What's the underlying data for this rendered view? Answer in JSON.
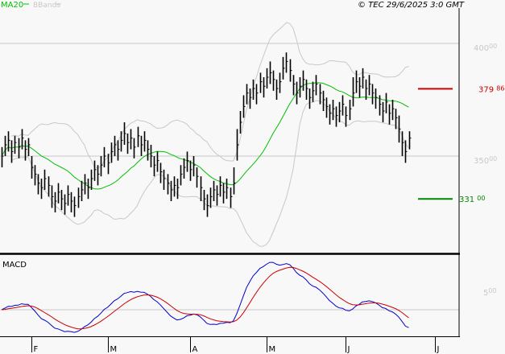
{
  "legend": {
    "ma20_label": "MA20",
    "bbands_label": "BBands",
    "copyright": "© TEC 29/6/2025 3:0 GMT"
  },
  "colors": {
    "background": "#f8f8f8",
    "bars": "#000000",
    "ma20": "#00c000",
    "bbands": "#c8c8c8",
    "resistance": "#cc0000",
    "support": "#008800",
    "macd": "#0000cc",
    "signal": "#cc0000",
    "grid": "#c8c8c8"
  },
  "chart_data": [
    {
      "type": "ohlc",
      "title": "",
      "ylim": [
        310,
        410
      ],
      "y_ticks": [
        {
          "value": 400,
          "major": "400",
          "minor": "00"
        },
        {
          "value": 350,
          "major": "350",
          "minor": "00"
        }
      ],
      "x_ticks": [
        "F",
        "M",
        "A",
        "M",
        "J",
        "J"
      ],
      "x_tick_bar_index": [
        9,
        32,
        57,
        80,
        104,
        131
      ],
      "grid": true,
      "levels": [
        {
          "name": "resistance",
          "value": 379.86,
          "major": "379",
          "minor": "86"
        },
        {
          "name": "support",
          "value": 331.0,
          "major": "331",
          "minor": "00"
        }
      ],
      "indicators": [
        "MA20",
        "BBands"
      ],
      "close": [
        350,
        355,
        357,
        352,
        356,
        354,
        358,
        353,
        355,
        345,
        342,
        338,
        336,
        340,
        337,
        332,
        330,
        334,
        331,
        329,
        333,
        330,
        328,
        332,
        335,
        338,
        336,
        340,
        344,
        342,
        346,
        350,
        347,
        352,
        355,
        353,
        357,
        360,
        356,
        358,
        354,
        359,
        355,
        357,
        353,
        350,
        346,
        348,
        343,
        340,
        338,
        335,
        337,
        336,
        342,
        345,
        348,
        344,
        346,
        341,
        336,
        331,
        328,
        332,
        335,
        333,
        337,
        334,
        336,
        332,
        338,
        355,
        365,
        372,
        378,
        376,
        380,
        378,
        383,
        381,
        385,
        387,
        384,
        380,
        383,
        389,
        392,
        388,
        382,
        378,
        381,
        384,
        380,
        376,
        379,
        382,
        378,
        375,
        372,
        369,
        371,
        368,
        370,
        373,
        368,
        371,
        378,
        383,
        381,
        385,
        380,
        382,
        378,
        376,
        373,
        370,
        374,
        369,
        371,
        367,
        362,
        356,
        352,
        358
      ],
      "high": [
        354,
        359,
        361,
        357,
        359,
        358,
        362,
        357,
        358,
        350,
        346,
        342,
        340,
        344,
        341,
        337,
        334,
        338,
        335,
        333,
        337,
        334,
        332,
        336,
        339,
        342,
        340,
        344,
        348,
        346,
        350,
        354,
        351,
        356,
        359,
        357,
        361,
        365,
        360,
        362,
        358,
        363,
        359,
        361,
        357,
        355,
        350,
        352,
        347,
        344,
        342,
        339,
        341,
        340,
        346,
        349,
        352,
        348,
        350,
        345,
        341,
        335,
        333,
        336,
        339,
        337,
        341,
        338,
        340,
        336,
        345,
        362,
        370,
        377,
        382,
        380,
        384,
        382,
        387,
        385,
        389,
        392,
        388,
        384,
        387,
        394,
        396,
        393,
        386,
        383,
        385,
        388,
        384,
        380,
        383,
        386,
        382,
        379,
        376,
        373,
        375,
        372,
        374,
        377,
        372,
        375,
        385,
        388,
        385,
        389,
        384,
        386,
        382,
        380,
        377,
        374,
        378,
        373,
        375,
        371,
        368,
        361,
        357,
        361
      ],
      "low": [
        345,
        350,
        352,
        347,
        351,
        349,
        353,
        348,
        350,
        340,
        337,
        333,
        331,
        335,
        332,
        327,
        325,
        329,
        326,
        324,
        328,
        325,
        323,
        327,
        330,
        333,
        331,
        335,
        339,
        337,
        341,
        345,
        342,
        347,
        350,
        348,
        352,
        355,
        351,
        353,
        349,
        354,
        350,
        352,
        348,
        345,
        341,
        343,
        338,
        335,
        333,
        330,
        332,
        331,
        337,
        340,
        343,
        339,
        341,
        336,
        330,
        326,
        323,
        327,
        330,
        328,
        332,
        329,
        331,
        327,
        333,
        348,
        360,
        367,
        373,
        371,
        375,
        373,
        378,
        376,
        380,
        382,
        379,
        375,
        378,
        384,
        387,
        383,
        377,
        373,
        376,
        379,
        375,
        371,
        374,
        377,
        373,
        370,
        367,
        364,
        366,
        363,
        365,
        368,
        363,
        366,
        372,
        378,
        376,
        380,
        375,
        377,
        373,
        371,
        368,
        365,
        369,
        364,
        366,
        362,
        356,
        350,
        347,
        353
      ]
    },
    {
      "type": "line",
      "title": "MACD",
      "y_ticks": [
        {
          "value": 5,
          "major": "5",
          "minor": "00"
        }
      ],
      "series": [
        {
          "name": "MACD",
          "color": "#0000cc"
        },
        {
          "name": "Signal",
          "color": "#cc0000"
        }
      ],
      "derived_from": "close"
    }
  ]
}
